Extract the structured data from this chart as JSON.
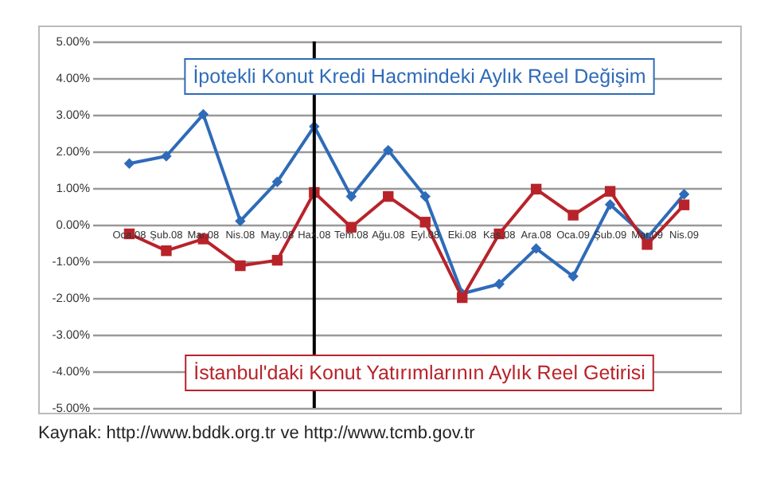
{
  "chart_data": {
    "type": "line",
    "categories": [
      "Oca.08",
      "Şub.08",
      "Mar.08",
      "Nis.08",
      "May.08",
      "Haz.08",
      "Tem.08",
      "Ağu.08",
      "Eyl.08",
      "Eki.08",
      "Kas.08",
      "Ara.08",
      "Oca.09",
      "Şub.09",
      "Mar.09",
      "Nis.09"
    ],
    "series": [
      {
        "name": "İpotekli Konut Kredi Hacmindeki Aylık Reel Değişim",
        "color": "#2e6bb8",
        "marker": "diamond",
        "values": [
          1.67,
          1.87,
          3.01,
          0.1,
          1.17,
          2.68,
          0.77,
          2.03,
          0.77,
          -1.88,
          -1.62,
          -0.65,
          -1.41,
          0.55,
          -0.36,
          0.83
        ]
      },
      {
        "name": "İstanbul'daki Konut Yatırımlarının Aylık Reel Getirisi",
        "color": "#b8232a",
        "marker": "square",
        "values": [
          -0.25,
          -0.71,
          -0.39,
          -1.12,
          -0.97,
          0.88,
          -0.07,
          0.77,
          0.07,
          -1.99,
          -0.25,
          0.97,
          0.26,
          0.91,
          -0.54,
          0.54
        ]
      }
    ],
    "ylim": [
      -5,
      5
    ],
    "yticks": [
      {
        "value": -5,
        "label": "-5.00%"
      },
      {
        "value": -4,
        "label": "-4.00%"
      },
      {
        "value": -3,
        "label": "-3.00%"
      },
      {
        "value": -2,
        "label": "-2.00%"
      },
      {
        "value": -1,
        "label": "-1.00%"
      },
      {
        "value": 0,
        "label": "0.00%"
      },
      {
        "value": 1,
        "label": "1.00%"
      },
      {
        "value": 2,
        "label": "2.00%"
      },
      {
        "value": 3,
        "label": "3.00%"
      },
      {
        "value": 4,
        "label": "4.00%"
      },
      {
        "value": 5,
        "label": "5.00%"
      }
    ],
    "grid": "y",
    "ref_lines": [
      {
        "axis": "x",
        "value": "Haz.08",
        "color": "#000000"
      }
    ],
    "annotations": [
      "Kaynak: http://www.bddk.org.tr ve http://www.tcmb.gov.tr"
    ]
  }
}
